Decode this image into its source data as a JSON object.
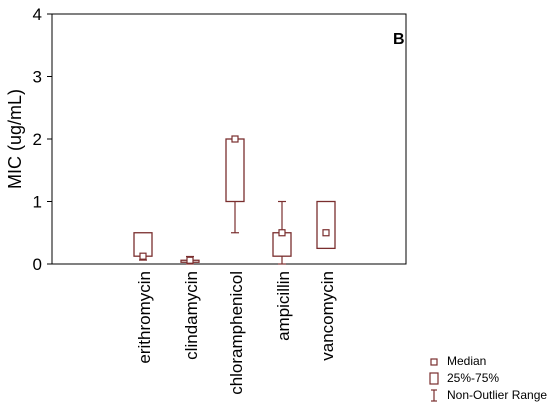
{
  "chart_data": {
    "type": "box",
    "panel_label": "B",
    "title": "",
    "ylabel": "MIC (ug/mL)",
    "xlabel": "",
    "ylim": [
      0,
      4
    ],
    "yticks": [
      "0",
      "1",
      "2",
      "3",
      "4"
    ],
    "grid": false,
    "categories": [
      "erithromycin",
      "clindamycin",
      "chloramphenicol",
      "ampicillin",
      "vancomycin"
    ],
    "boxes": [
      {
        "category": "erithromycin",
        "median": 0.125,
        "q1": 0.125,
        "q3": 0.5,
        "whisker_low": 0.0625,
        "whisker_high": 0.5
      },
      {
        "category": "clindamycin",
        "median": 0.06,
        "q1": 0.03,
        "q3": 0.06,
        "whisker_low": 0.0,
        "whisker_high": 0.12
      },
      {
        "category": "chloramphenicol",
        "median": 2.0,
        "q1": 1.0,
        "q3": 2.0,
        "whisker_low": 0.5,
        "whisker_high": 2.0
      },
      {
        "category": "ampicillin",
        "median": 0.5,
        "q1": 0.125,
        "q3": 0.5,
        "whisker_low": 0.0,
        "whisker_high": 1.0
      },
      {
        "category": "vancomycin",
        "median": 0.5,
        "q1": 0.25,
        "q3": 1.0,
        "whisker_low": 0.25,
        "whisker_high": 1.0
      }
    ],
    "legend": {
      "placement": "bottom-right",
      "items": [
        {
          "symbol": "median-marker",
          "label": "Median"
        },
        {
          "symbol": "box",
          "label": "25%-75%"
        },
        {
          "symbol": "whisker",
          "label": "Non-Outlier Range"
        }
      ]
    },
    "colors": {
      "box": "#7a2e2e",
      "axis": "#000000"
    }
  }
}
